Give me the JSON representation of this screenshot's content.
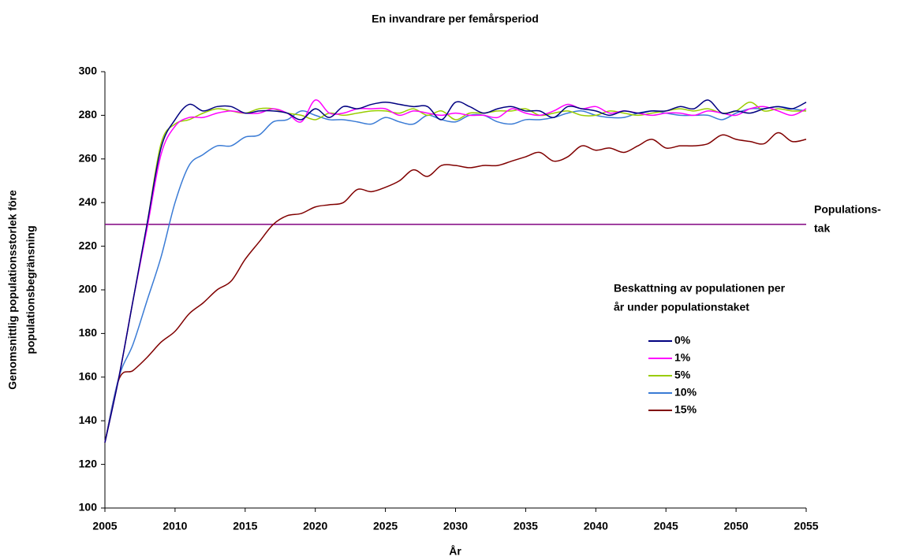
{
  "chart_data": {
    "type": "line",
    "title": "En invandrare per femårsperiod",
    "x_label": "År",
    "y_label": [
      "Genomsnittlig populationsstorlek före",
      "populationsbegränsning"
    ],
    "x": [
      2005,
      2006,
      2007,
      2008,
      2009,
      2010,
      2011,
      2012,
      2013,
      2014,
      2015,
      2016,
      2017,
      2018,
      2019,
      2020,
      2021,
      2022,
      2023,
      2024,
      2025,
      2026,
      2027,
      2028,
      2029,
      2030,
      2031,
      2032,
      2033,
      2034,
      2035,
      2036,
      2037,
      2038,
      2039,
      2040,
      2041,
      2042,
      2043,
      2044,
      2045,
      2046,
      2047,
      2048,
      2049,
      2050,
      2051,
      2052,
      2053,
      2054,
      2055
    ],
    "xlim": [
      2005,
      2055
    ],
    "xticks": [
      2005,
      2010,
      2015,
      2020,
      2025,
      2030,
      2035,
      2040,
      2045,
      2050,
      2055
    ],
    "ylim": [
      100,
      300
    ],
    "yticks": [
      100,
      120,
      140,
      160,
      180,
      200,
      220,
      240,
      260,
      280,
      300
    ],
    "grid": false,
    "legend_title": [
      "Beskattning av populationen per",
      "år under populationstaket"
    ],
    "annotation": {
      "value": 230,
      "lines": [
        "Populations-",
        "tak"
      ],
      "color": "#800080"
    },
    "series": [
      {
        "name": "0%",
        "color": "#000080",
        "values": [
          130,
          160,
          195,
          230,
          265,
          278,
          285,
          282,
          284,
          284,
          281,
          282,
          282,
          281,
          278,
          283,
          279,
          284,
          283,
          285,
          286,
          285,
          284,
          284,
          278,
          286,
          284,
          281,
          283,
          284,
          282,
          282,
          279,
          284,
          283,
          282,
          280,
          282,
          281,
          282,
          282,
          284,
          283,
          287,
          281,
          282,
          281,
          283,
          284,
          283,
          286
        ]
      },
      {
        "name": "1%",
        "color": "#ff00ff",
        "values": [
          130,
          160,
          195,
          228,
          262,
          275,
          279,
          279,
          281,
          282,
          281,
          281,
          283,
          281,
          277,
          287,
          281,
          281,
          283,
          283,
          283,
          280,
          282,
          281,
          280,
          281,
          280,
          280,
          279,
          283,
          281,
          280,
          282,
          285,
          283,
          284,
          281,
          282,
          281,
          280,
          281,
          281,
          280,
          282,
          281,
          280,
          283,
          284,
          282,
          280,
          283
        ]
      },
      {
        "name": "5%",
        "color": "#99cc00",
        "values": [
          130,
          160,
          195,
          230,
          267,
          276,
          278,
          281,
          283,
          282,
          281,
          283,
          283,
          281,
          280,
          278,
          281,
          280,
          281,
          282,
          282,
          281,
          283,
          280,
          282,
          278,
          281,
          281,
          282,
          282,
          283,
          280,
          281,
          282,
          280,
          280,
          282,
          281,
          280,
          281,
          282,
          283,
          282,
          283,
          281,
          282,
          286,
          282,
          283,
          282,
          282
        ]
      },
      {
        "name": "10%",
        "color": "#3a7bd5",
        "values": [
          130,
          160,
          175,
          195,
          215,
          240,
          257,
          262,
          266,
          266,
          270,
          271,
          277,
          278,
          282,
          280,
          278,
          278,
          277,
          276,
          279,
          277,
          276,
          280,
          278,
          277,
          280,
          280,
          277,
          276,
          278,
          278,
          279,
          281,
          282,
          280,
          279,
          279,
          281,
          282,
          281,
          280,
          280,
          280,
          278,
          281,
          283,
          283,
          284,
          283,
          282
        ]
      },
      {
        "name": "15%",
        "color": "#800000",
        "values": [
          130,
          159,
          163,
          169,
          176,
          181,
          189,
          194,
          200,
          204,
          214,
          222,
          230,
          234,
          235,
          238,
          239,
          240,
          246,
          245,
          247,
          250,
          255,
          252,
          257,
          257,
          256,
          257,
          257,
          259,
          261,
          263,
          259,
          261,
          266,
          264,
          265,
          263,
          266,
          269,
          265,
          266,
          266,
          267,
          271,
          269,
          268,
          267,
          272,
          268,
          269
        ]
      }
    ]
  }
}
